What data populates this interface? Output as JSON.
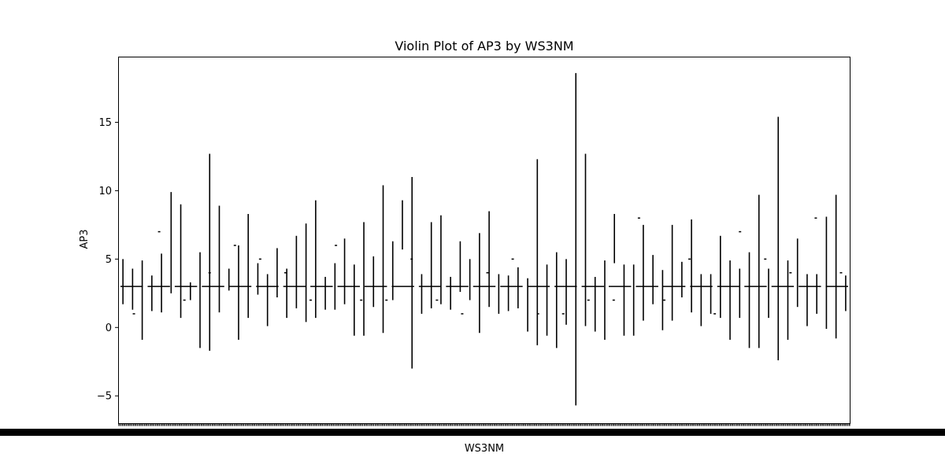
{
  "chart_data": {
    "type": "violin",
    "title": "Violin Plot of AP3 by WS3NM",
    "xlabel": "WS3NM",
    "ylabel": "AP3",
    "ylim": [
      -7,
      19.8
    ],
    "yticks": [
      -5,
      0,
      5,
      10,
      15
    ],
    "ytick_labels": [
      "−5",
      "0",
      "5",
      "10",
      "15"
    ],
    "grid": false,
    "legend": "none",
    "colors": {
      "violin": "#000000",
      "axes": "#000000"
    },
    "x_tick_count": 400,
    "median_line": 3,
    "violins": [
      [
        1.7,
        5.0
      ],
      [
        1.3,
        4.3
      ],
      [
        -0.9,
        4.9
      ],
      [
        1.2,
        3.8
      ],
      [
        1.1,
        5.4
      ],
      [
        2.5,
        9.9
      ],
      [
        0.7,
        9.0
      ],
      [
        2.0,
        3.3
      ],
      [
        -1.5,
        5.5
      ],
      [
        -1.7,
        12.7
      ],
      [
        1.1,
        8.9
      ],
      [
        2.7,
        4.3
      ],
      [
        -0.9,
        6.0
      ],
      [
        0.7,
        8.3
      ],
      [
        2.4,
        4.7
      ],
      [
        0.1,
        3.9
      ],
      [
        2.2,
        5.8
      ],
      [
        0.7,
        4.3
      ],
      [
        1.4,
        6.7
      ],
      [
        0.4,
        7.6
      ],
      [
        0.7,
        9.3
      ],
      [
        1.3,
        3.7
      ],
      [
        1.3,
        4.7
      ],
      [
        1.7,
        6.5
      ],
      [
        -0.6,
        4.6
      ],
      [
        -0.6,
        7.7
      ],
      [
        1.5,
        5.2
      ],
      [
        -0.4,
        10.4
      ],
      [
        2.0,
        6.3
      ],
      [
        5.7,
        9.3
      ],
      [
        -3.0,
        11.0
      ],
      [
        1.0,
        3.9
      ],
      [
        1.4,
        7.7
      ],
      [
        1.7,
        8.2
      ],
      [
        1.3,
        3.7
      ],
      [
        2.6,
        6.3
      ],
      [
        2.0,
        5.0
      ],
      [
        -0.4,
        6.9
      ],
      [
        1.5,
        8.5
      ],
      [
        1.0,
        3.9
      ],
      [
        1.2,
        3.8
      ],
      [
        1.4,
        4.4
      ],
      [
        -0.3,
        3.6
      ],
      [
        -1.3,
        12.3
      ],
      [
        -0.6,
        4.6
      ],
      [
        -1.5,
        5.5
      ],
      [
        0.2,
        5.0
      ],
      [
        -5.7,
        18.6
      ],
      [
        0.1,
        12.7
      ],
      [
        -0.3,
        3.7
      ],
      [
        -0.9,
        4.9
      ],
      [
        4.7,
        8.3
      ],
      [
        -0.6,
        4.6
      ],
      [
        -0.6,
        4.6
      ],
      [
        0.5,
        7.5
      ],
      [
        1.7,
        5.3
      ],
      [
        -0.2,
        4.2
      ],
      [
        0.5,
        7.5
      ],
      [
        2.2,
        4.8
      ],
      [
        1.1,
        7.9
      ],
      [
        0.1,
        3.9
      ],
      [
        1.0,
        3.9
      ],
      [
        0.7,
        6.7
      ],
      [
        -0.9,
        4.9
      ],
      [
        0.7,
        4.3
      ],
      [
        -1.5,
        5.5
      ],
      [
        -1.5,
        9.7
      ],
      [
        0.7,
        4.3
      ],
      [
        -2.4,
        15.4
      ],
      [
        -0.9,
        4.9
      ],
      [
        1.5,
        6.5
      ],
      [
        0.1,
        3.9
      ],
      [
        1.0,
        3.9
      ],
      [
        -0.1,
        8.1
      ],
      [
        -0.8,
        9.7
      ],
      [
        1.2,
        3.8
      ]
    ],
    "points": [
      1,
      7,
      2,
      4,
      6,
      5,
      4,
      2,
      6,
      2,
      2,
      5,
      2,
      1,
      4,
      5,
      1,
      1,
      2,
      2,
      8,
      2,
      5,
      1,
      7,
      5,
      4,
      8,
      4
    ],
    "segments": 27
  }
}
